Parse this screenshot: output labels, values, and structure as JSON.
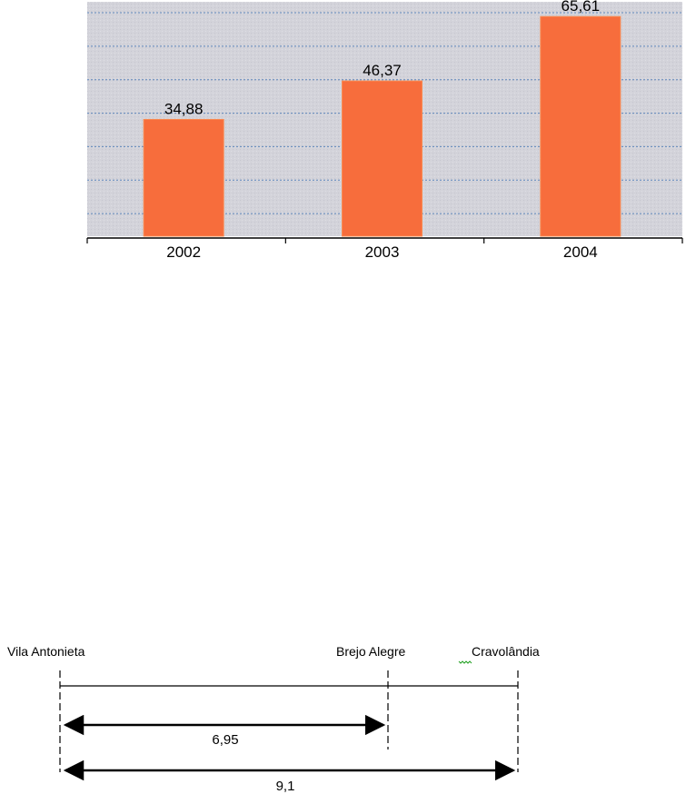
{
  "chart_data": {
    "type": "bar",
    "categories": [
      "2002",
      "2003",
      "2004"
    ],
    "values": [
      34.88,
      46.37,
      65.61
    ],
    "value_labels": [
      "34,88",
      "46,37",
      "65,61"
    ],
    "title": "",
    "xlabel": "",
    "ylabel": "",
    "ylim": [
      0,
      70
    ],
    "grid": true,
    "legend": "none",
    "colors": {
      "bar": "#f76d3c",
      "bar_edge": "#f98b52",
      "plot_background": "#d4d4db",
      "gridline": "#3a6fb3"
    }
  },
  "diagram": {
    "places": {
      "left": "Vila Antonieta",
      "middle": "Brejo Alegre",
      "right": "Cravolândia"
    },
    "distances": {
      "short": "6,95",
      "long": "9,1"
    },
    "colors": {
      "line": "#000000",
      "spell_squiggle": "#22a022"
    }
  }
}
